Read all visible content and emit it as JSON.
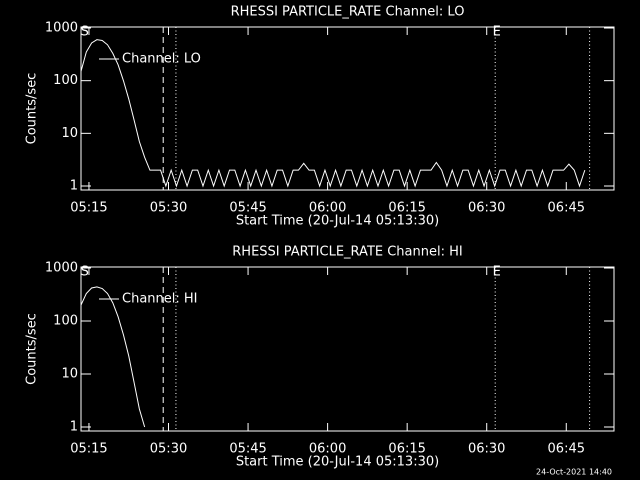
{
  "chart_data": [
    {
      "type": "line",
      "title": "RHESSI PARTICLE_RATE Channel: LO",
      "xlabel": "Start Time (20-Jul-14 05:13:30)",
      "ylabel": "Counts/sec",
      "log_y": true,
      "xlim": [
        313.5,
        414
      ],
      "ylim": [
        1,
        1000
      ],
      "xticks": [
        {
          "value": 315,
          "label": "05:15"
        },
        {
          "value": 330,
          "label": "05:30"
        },
        {
          "value": 345,
          "label": "05:45"
        },
        {
          "value": 360,
          "label": "06:00"
        },
        {
          "value": 375,
          "label": "06:15"
        },
        {
          "value": 390,
          "label": "06:30"
        },
        {
          "value": 405,
          "label": "06:45"
        }
      ],
      "yticks": [
        1,
        10,
        100,
        1000
      ],
      "vlines": [
        {
          "x": 329,
          "style": "dashed"
        },
        {
          "x": 331.4,
          "style": "dotted"
        },
        {
          "x": 391.6,
          "style": "dotted"
        },
        {
          "x": 409.4,
          "style": "dotted"
        }
      ],
      "annotations": [
        {
          "text": "S",
          "x": 314.2
        },
        {
          "text": "E",
          "x": 391.9
        }
      ],
      "series": [
        {
          "name": "Channel: LO",
          "color": "#ffffff",
          "x": [
            313.5,
            314.5,
            315.5,
            316.5,
            317.5,
            318.5,
            319.5,
            320.5,
            321.5,
            322.5,
            323.5,
            324.5,
            325.5,
            326.5,
            327.5,
            328.5,
            329.5,
            330.5,
            331.5,
            332.5,
            333.5,
            334.5,
            335.5,
            336.5,
            337.5,
            338.5,
            339.5,
            340.5,
            341.5,
            342.5,
            343.5,
            344.5,
            345.5,
            346.5,
            347.5,
            348.5,
            349.5,
            350.5,
            351.5,
            352.5,
            353.5,
            354.5,
            355.5,
            356.5,
            357.5,
            358.5,
            359.5,
            360.5,
            361.5,
            362.5,
            363.5,
            364.5,
            365.5,
            366.5,
            367.5,
            368.5,
            369.5,
            370.5,
            371.5,
            372.5,
            373.5,
            374.5,
            375.5,
            376.5,
            377.5,
            378.5,
            379.5,
            380.5,
            381.5,
            382.5,
            383.5,
            384.5,
            385.5,
            386.5,
            387.5,
            388.5,
            389.5,
            390.5,
            391.5,
            392.5,
            393.5,
            394.5,
            395.5,
            396.5,
            397.5,
            398.5,
            399.5,
            400.5,
            401.5,
            402.5,
            403.5,
            404.5,
            405.5,
            406.5,
            407.5,
            408.5
          ],
          "values": [
            150,
            350,
            520,
            600,
            580,
            480,
            330,
            200,
            100,
            45,
            18,
            7,
            3.5,
            2,
            2,
            2,
            1,
            2,
            1,
            2,
            1,
            2,
            2,
            1,
            2,
            1,
            2,
            1,
            2,
            2,
            1,
            2,
            1,
            2,
            1,
            2,
            1,
            2,
            2,
            1,
            2,
            2,
            2.7,
            2,
            2,
            1,
            2,
            1,
            2,
            1,
            2,
            2,
            1,
            2,
            1,
            2,
            1,
            2,
            1,
            2,
            2,
            1,
            2,
            1,
            2,
            2,
            2,
            2.8,
            2,
            1,
            2,
            1,
            2,
            2,
            1,
            2,
            1,
            2,
            1,
            2,
            2,
            1,
            2,
            1,
            2,
            2,
            1,
            2,
            1,
            2,
            2,
            2,
            2.6,
            2,
            1,
            2
          ]
        }
      ]
    },
    {
      "type": "line",
      "title": "RHESSI PARTICLE_RATE Channel: HI",
      "xlabel": "Start Time (20-Jul-14 05:13:30)",
      "ylabel": "Counts/sec",
      "log_y": true,
      "xlim": [
        313.5,
        414
      ],
      "ylim": [
        1,
        1000
      ],
      "xticks": [
        {
          "value": 315,
          "label": "05:15"
        },
        {
          "value": 330,
          "label": "05:30"
        },
        {
          "value": 345,
          "label": "05:45"
        },
        {
          "value": 360,
          "label": "06:00"
        },
        {
          "value": 375,
          "label": "06:15"
        },
        {
          "value": 390,
          "label": "06:30"
        },
        {
          "value": 405,
          "label": "06:45"
        }
      ],
      "yticks": [
        1,
        10,
        100,
        1000
      ],
      "vlines": [
        {
          "x": 329,
          "style": "dashed"
        },
        {
          "x": 331.4,
          "style": "dotted"
        },
        {
          "x": 391.6,
          "style": "dotted"
        },
        {
          "x": 409.4,
          "style": "dotted"
        }
      ],
      "annotations": [
        {
          "text": "S",
          "x": 314.2
        },
        {
          "text": "E",
          "x": 391.9
        }
      ],
      "series": [
        {
          "name": "Channel: HI",
          "color": "#ffffff",
          "x": [
            313.5,
            314.5,
            315.5,
            316.5,
            317.5,
            318.5,
            319.5,
            320.5,
            321.5,
            322.5,
            323.5,
            324.5,
            325.5
          ],
          "values": [
            200,
            330,
            420,
            440,
            410,
            330,
            220,
            120,
            55,
            22,
            7,
            2.2,
            1
          ]
        }
      ]
    }
  ],
  "footer": "24-Oct-2021 14:40"
}
